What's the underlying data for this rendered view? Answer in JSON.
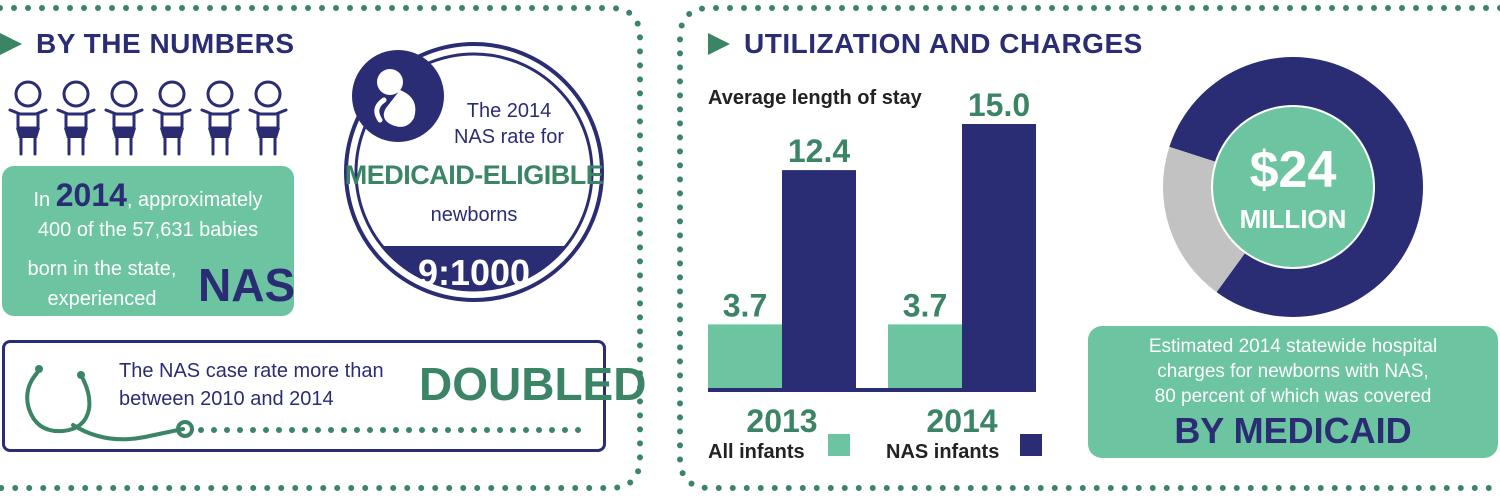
{
  "left_panel": {
    "heading": "BY THE NUMBERS",
    "babies_count": 6,
    "stat_box": {
      "line1_pre": "In",
      "year": "2014",
      "line1_post": ", approximately",
      "line2": "400 of the 57,631 babies",
      "line3": "born in the state,",
      "line4": "experienced",
      "nas": "NAS"
    },
    "circle": {
      "line1": "The 2014",
      "line2": "NAS rate for",
      "highlight": "MEDICAID-ELIGIBLE",
      "line3": "newborns",
      "rate": "9:1000"
    },
    "doubled_box": {
      "line1": "The NAS case rate more than",
      "line2": "between 2010 and 2014",
      "highlight": "DOUBLED"
    }
  },
  "right_panel": {
    "heading": "UTILIZATION AND CHARGES",
    "chart_title": "Average length of stay",
    "donut": {
      "amount": "$24",
      "unit": "MILLION",
      "medicaid_share": 0.8,
      "medicaid_color": "#2b2d74",
      "other_color": "#c2c2c2"
    },
    "caption": {
      "line1": "Estimated 2014 statewide hospital",
      "line2": "charges for newborns with NAS,",
      "line3": "80 percent of which was covered",
      "highlight": "BY MEDICAID"
    }
  },
  "colors": {
    "navy": "#2b2d74",
    "teal_dark": "#3b8466",
    "teal_light": "#6cc4a1",
    "dot_green": "#3b8466"
  },
  "chart_data": {
    "type": "bar",
    "title": "Average length of stay",
    "categories": [
      "2013",
      "2014"
    ],
    "series": [
      {
        "name": "All infants",
        "values": [
          3.7,
          3.7
        ],
        "color": "#6cc4a1"
      },
      {
        "name": "NAS infants",
        "values": [
          12.4,
          15.0
        ],
        "color": "#2b2d74"
      }
    ],
    "value_labels": [
      [
        "3.7",
        "3.7"
      ],
      [
        "12.4",
        "15.0"
      ]
    ],
    "ylim": [
      0,
      15.0
    ],
    "grid": false,
    "legend": "bottom"
  }
}
